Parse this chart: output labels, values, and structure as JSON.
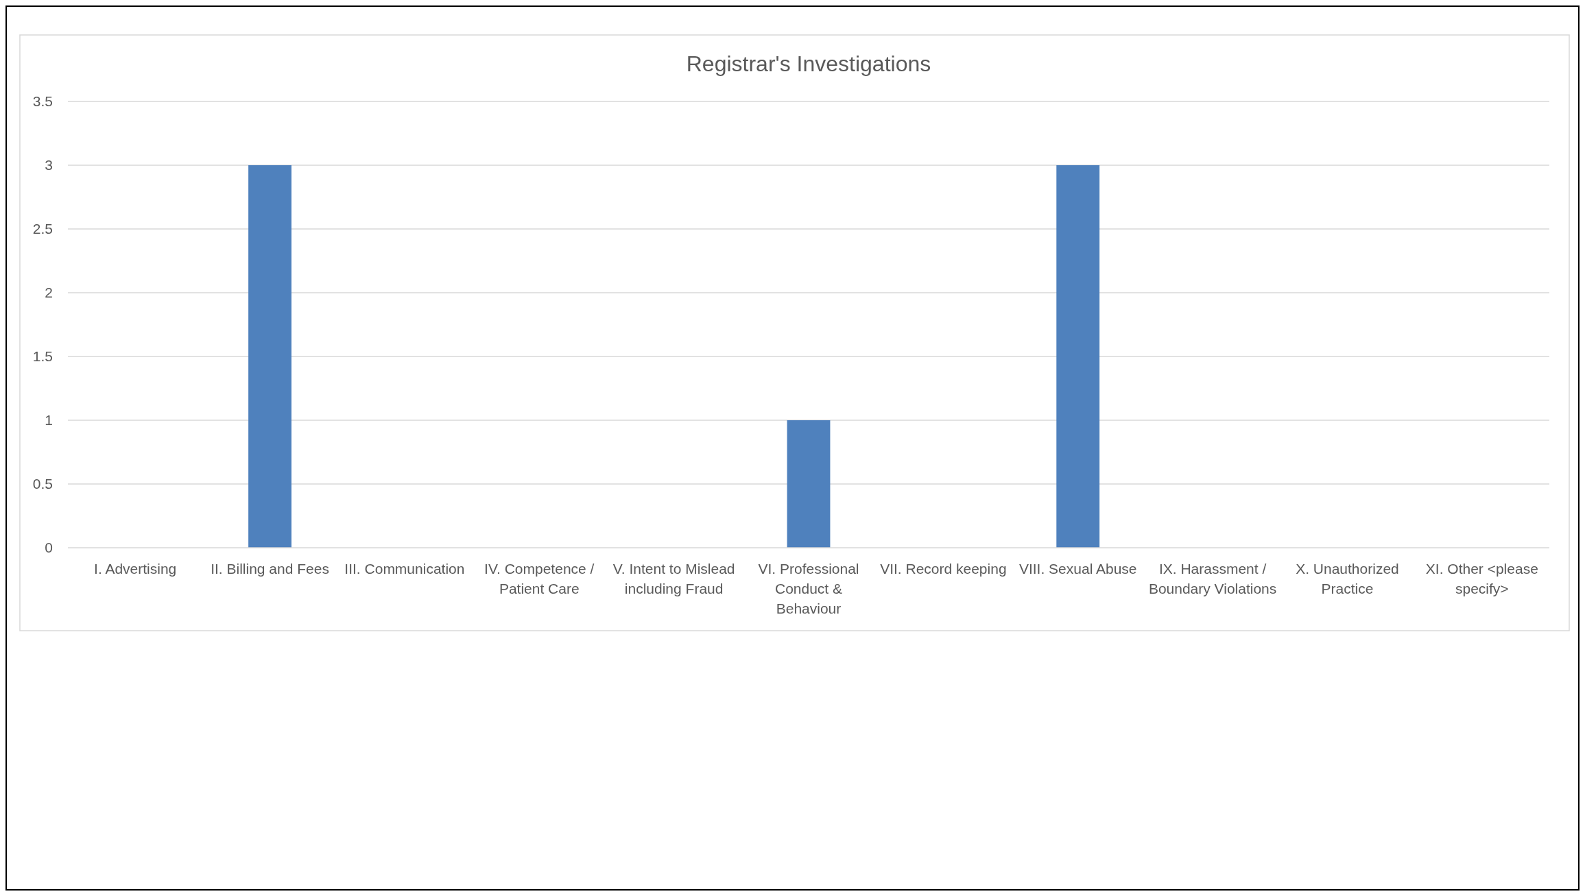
{
  "chart_data": {
    "type": "bar",
    "title": "Registrar's Investigations",
    "categories": [
      "I. Advertising",
      "II. Billing and Fees",
      "III. Communication",
      "IV. Competence / Patient Care",
      "V. Intent to Mislead including Fraud",
      "VI. Professional Conduct & Behaviour",
      "VII. Record keeping",
      "VIII. Sexual Abuse",
      "IX. Harassment / Boundary Violations",
      "X. Unauthorized Practice",
      "XI. Other <please specify>"
    ],
    "values": [
      0,
      3,
      0,
      0,
      0,
      1,
      0,
      3,
      0,
      0,
      0
    ],
    "color": "#4f81bd",
    "ylim": [
      0,
      3.5
    ],
    "yticks": [
      0,
      0.5,
      1,
      1.5,
      2,
      2.5,
      3,
      3.5
    ],
    "grid": true
  }
}
